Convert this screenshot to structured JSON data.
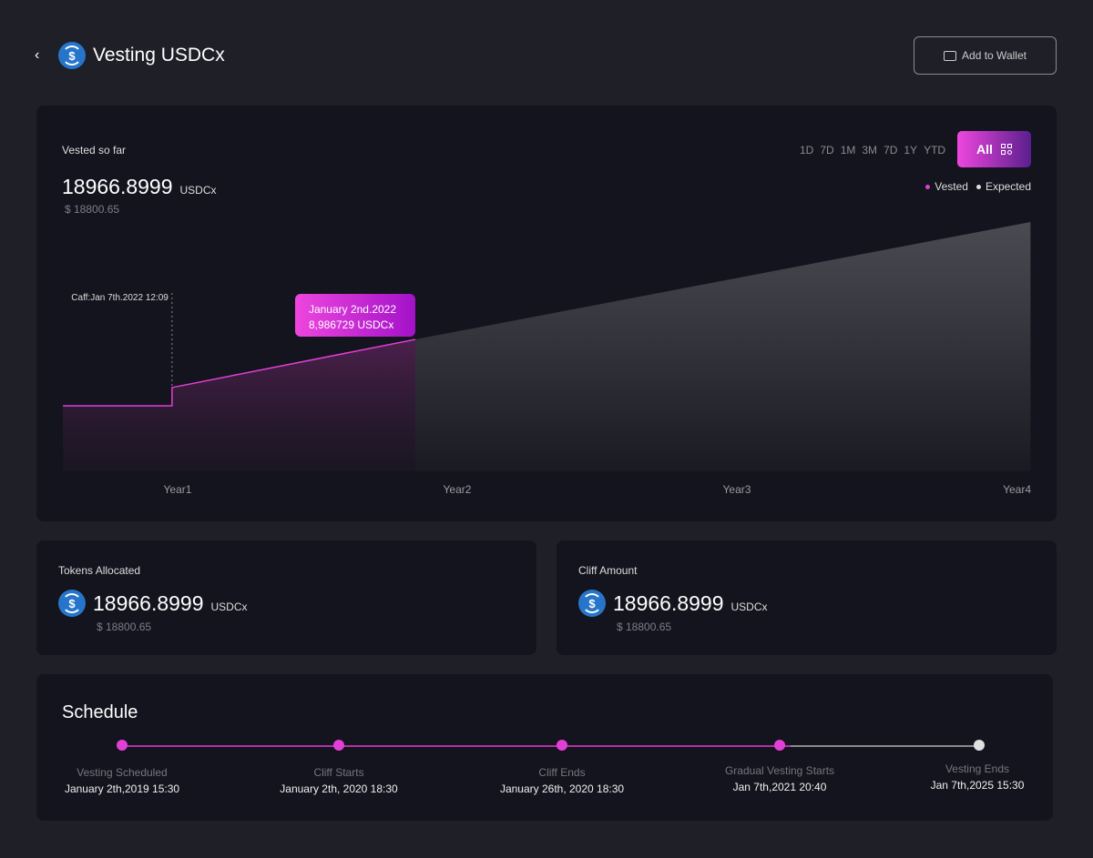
{
  "header": {
    "title": "Vesting USDCx",
    "add_wallet": "Add to Wallet"
  },
  "summary": {
    "label": "Vested so far",
    "amount": "18966.8999",
    "unit": "USDCx",
    "usd": "$ 18800.65"
  },
  "timeframes": [
    "1D",
    "7D",
    "1M",
    "3M",
    "7D",
    "1Y",
    "YTD"
  ],
  "all_label": "All",
  "legend": {
    "vested": "Vested",
    "expected": "Expected"
  },
  "colors": {
    "vested": "#e23fd6",
    "expected": "#e0e0e0",
    "accent_start": "#ee46de",
    "accent_end": "#5a1f8e",
    "coin": "#2775ca"
  },
  "chart_data": {
    "type": "area",
    "xlabel": "",
    "ylabel": "",
    "x_ticks": [
      "Year1",
      "Year2",
      "Year3",
      "Year4"
    ],
    "xlim": [
      0.59,
      4.05
    ],
    "ylim": [
      0,
      100
    ],
    "series": [
      {
        "name": "Vested",
        "points": [
          [
            0.59,
            26.3
          ],
          [
            0.98,
            26.3
          ],
          [
            0.98,
            33.6
          ],
          [
            1.85,
            52.9
          ]
        ]
      },
      {
        "name": "Expected",
        "points": [
          [
            1.85,
            52.9
          ],
          [
            4.05,
            100
          ]
        ]
      }
    ],
    "cliff_annotation": {
      "label": "Caff:Jan 7th.2022 12:09",
      "x": 0.98
    },
    "tooltip": {
      "date": "January 2nd.2022",
      "value": "8,986729 USDCx",
      "x": 1.85
    }
  },
  "tokens_allocated": {
    "label": "Tokens Allocated",
    "amount": "18966.8999",
    "unit": "USDCx",
    "usd": "$ 18800.65"
  },
  "cliff_amount": {
    "label": "Cliff Amount",
    "amount": "18966.8999",
    "unit": "USDCx",
    "usd": "$ 18800.65"
  },
  "schedule": {
    "title": "Schedule",
    "progress": 0.78,
    "items": [
      {
        "title": "Vesting Scheduled",
        "date": "January 2th,2019 15:30",
        "done": true
      },
      {
        "title": "Cliff Starts",
        "date": "January 2th, 2020 18:30",
        "done": true
      },
      {
        "title": "Cliff Ends",
        "date": "January 26th, 2020 18:30",
        "done": true
      },
      {
        "title": "Gradual Vesting Starts",
        "date": "Jan 7th,2021 20:40",
        "done": true
      },
      {
        "title": "Vesting Ends",
        "date": "Jan 7th,2025 15:30",
        "done": false
      }
    ]
  }
}
